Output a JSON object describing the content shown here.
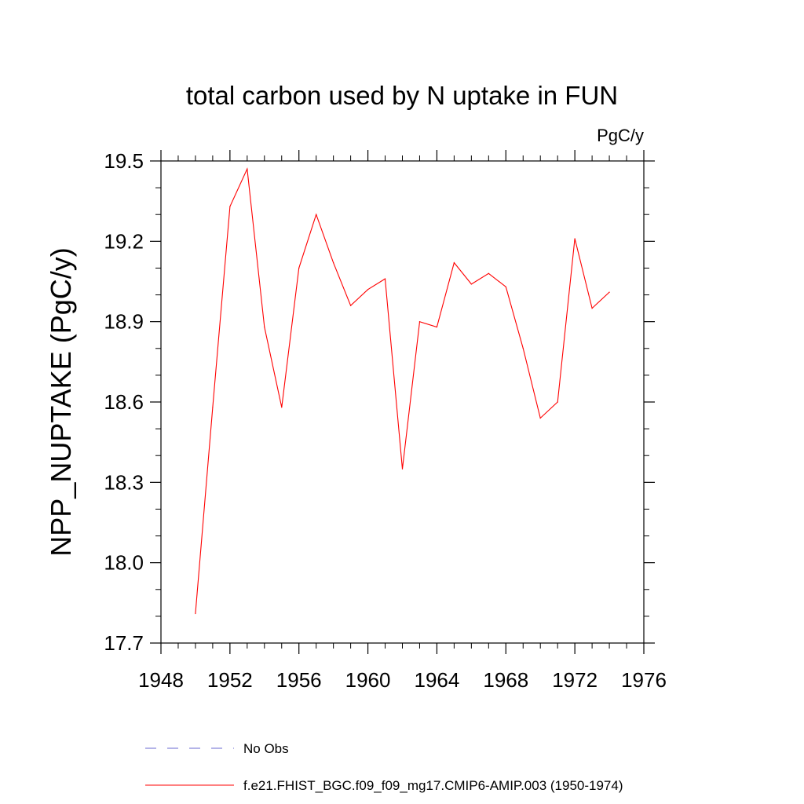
{
  "chart_data": {
    "type": "line",
    "title": "total carbon used by N uptake in FUN",
    "units_label": "PgC/y",
    "xlabel": "",
    "ylabel": "NPP_NUPTAKE  (PgC/y)",
    "xlim": [
      1948,
      1976
    ],
    "ylim": [
      17.7,
      19.5
    ],
    "xticks": [
      1948,
      1952,
      1956,
      1960,
      1964,
      1968,
      1972,
      1976
    ],
    "xtick_labels": [
      "1948",
      "1952",
      "1956",
      "1960",
      "1964",
      "1968",
      "1972",
      "1976"
    ],
    "yticks": [
      17.7,
      18.0,
      18.3,
      18.6,
      18.9,
      19.2,
      19.5
    ],
    "ytick_labels": [
      "17.7",
      "18.0",
      "18.3",
      "18.6",
      "18.9",
      "19.2",
      "19.5"
    ],
    "grid": false,
    "legend_position": "bottom",
    "series": [
      {
        "name": "f.e21.FHIST_BGC.f09_f09_mg17.CMIP6-AMIP.003 (1950-1974)",
        "color": "#ff0000",
        "style": "solid",
        "x": [
          1950,
          1951,
          1952,
          1953,
          1954,
          1955,
          1956,
          1957,
          1958,
          1959,
          1960,
          1961,
          1962,
          1963,
          1964,
          1965,
          1966,
          1967,
          1968,
          1969,
          1970,
          1971,
          1972,
          1973,
          1974
        ],
        "y": [
          17.81,
          18.58,
          19.33,
          19.47,
          18.88,
          18.58,
          19.1,
          19.3,
          19.12,
          18.96,
          19.02,
          19.06,
          18.35,
          18.9,
          18.88,
          19.12,
          19.04,
          19.08,
          19.03,
          18.8,
          18.54,
          18.6,
          19.21,
          18.95,
          19.01
        ]
      }
    ],
    "legend": [
      {
        "label": "No Obs",
        "color": "#6a6ad0",
        "style": "dashed"
      },
      {
        "label": "f.e21.FHIST_BGC.f09_f09_mg17.CMIP6-AMIP.003 (1950-1974)",
        "color": "#ff0000",
        "style": "solid"
      }
    ]
  }
}
